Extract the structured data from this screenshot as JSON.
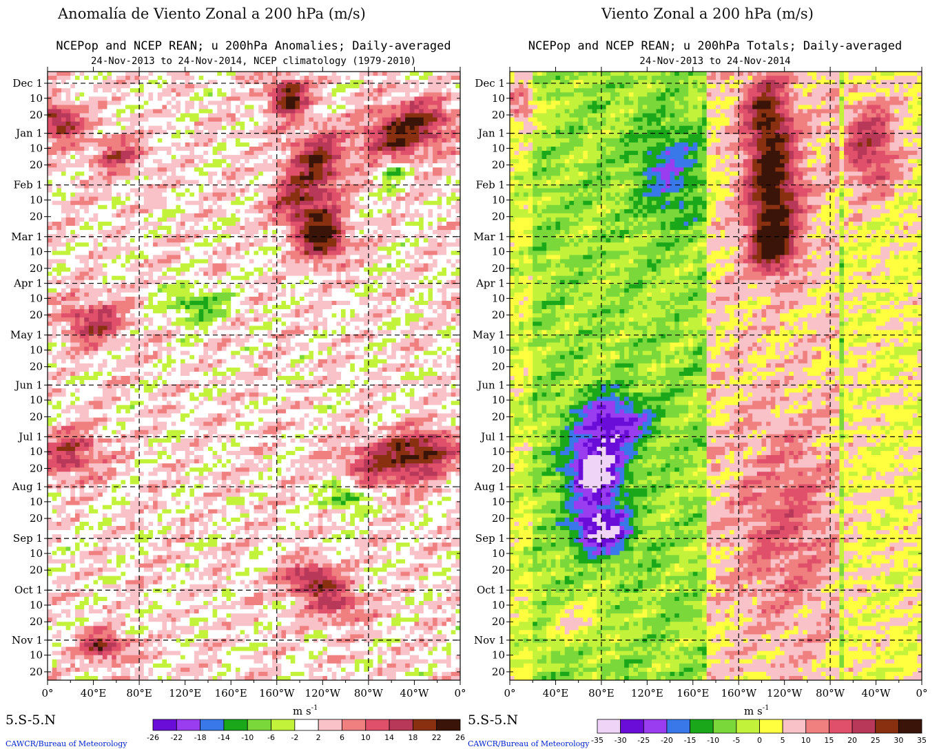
{
  "page_titles": {
    "left": "Anomalía de Viento Zonal a 200 hPa (m/s)",
    "right": "Viento Zonal  a 200 hPa (m/s)"
  },
  "region_label": "5.S-5.N",
  "credit": "CAWCR/Bureau of Meteorology",
  "units": "m s",
  "units_exp": "-1",
  "chart_data": [
    {
      "type": "heatmap",
      "title": "NCEPop and NCEP REAN; u 200hPa Anomalies; Daily-averaged",
      "subtitle": "24-Nov-2013 to 24-Nov-2014, NCEP climatology (1979-2010)",
      "x_ticks": [
        "0°",
        "40°E",
        "80°E",
        "120°E",
        "160°E",
        "160°W",
        "120°W",
        "80°W",
        "40°W",
        "0°"
      ],
      "x_range_deg_east": [
        0,
        360
      ],
      "y_ticks": [
        "Dec 1",
        "10",
        "20",
        "Jan 1",
        "10",
        "20",
        "Feb 1",
        "10",
        "20",
        "Mar 1",
        "10",
        "20",
        "Apr 1",
        "10",
        "20",
        "May 1",
        "10",
        "20",
        "Jun 1",
        "10",
        "20",
        "Jul 1",
        "10",
        "20",
        "Aug 1",
        "10",
        "20",
        "Sep 1",
        "10",
        "20",
        "Oct 1",
        "10",
        "20",
        "Nov 1",
        "10",
        "20"
      ],
      "y_range": [
        "24-Nov-2013",
        "24-Nov-2014"
      ],
      "colorbar_levels": [
        "-26",
        "-22",
        "-18",
        "-14",
        "-10",
        "-6",
        "-2",
        "2",
        "6",
        "10",
        "14",
        "18",
        "22",
        "26"
      ],
      "colorbar_colors": [
        "#6a0dd8",
        "#9a3cf0",
        "#3878e8",
        "#1aa81a",
        "#7ad83a",
        "#c2f23a",
        "#ffffff",
        "#f8c2c8",
        "#f08080",
        "#e0506a",
        "#b8385a",
        "#883010",
        "#3a1408"
      ],
      "features": [
        {
          "lon_range": [
            155,
            240
          ],
          "dates": "Dec–Mar",
          "anomaly_sign": "positive",
          "peak_ms": 26
        },
        {
          "lon_range": [
            270,
            360
          ],
          "dates": "Dec–Jan",
          "anomaly_sign": "positive",
          "peak_ms": 22
        },
        {
          "lon_range": [
            0,
            120
          ],
          "dates": "Nov",
          "anomaly_sign": "positive",
          "peak_ms": 22
        }
      ]
    },
    {
      "type": "heatmap",
      "title": "NCEPop and NCEP REAN; u 200hPa Totals; Daily-averaged",
      "subtitle": "24-Nov-2013 to 24-Nov-2014",
      "x_ticks": [
        "0°",
        "40°E",
        "80°E",
        "120°E",
        "160°E",
        "160°W",
        "120°W",
        "80°W",
        "40°W",
        "0°"
      ],
      "x_range_deg_east": [
        0,
        360
      ],
      "y_ticks": [
        "Dec 1",
        "10",
        "20",
        "Jan 1",
        "10",
        "20",
        "Feb 1",
        "10",
        "20",
        "Mar 1",
        "10",
        "20",
        "Apr 1",
        "10",
        "20",
        "May 1",
        "10",
        "20",
        "Jun 1",
        "10",
        "20",
        "Jul 1",
        "10",
        "20",
        "Aug 1",
        "10",
        "20",
        "Sep 1",
        "10",
        "20",
        "Oct 1",
        "10",
        "20",
        "Nov 1",
        "10",
        "20"
      ],
      "y_range": [
        "24-Nov-2013",
        "24-Nov-2014"
      ],
      "colorbar_levels": [
        "-35",
        "-30",
        "-25",
        "-20",
        "-15",
        "-10",
        "-5",
        "0",
        "5",
        "10",
        "15",
        "20",
        "25",
        "30",
        "35"
      ],
      "colorbar_colors": [
        "#f0d4f8",
        "#6a0dd8",
        "#9a3cf0",
        "#3878e8",
        "#1aa81a",
        "#7ad83a",
        "#c2f23a",
        "#ffff40",
        "#f8c2c8",
        "#f08080",
        "#e0506a",
        "#b8385a",
        "#883010",
        "#3a1408"
      ],
      "features": [
        {
          "lon_range": [
            175,
            275
          ],
          "dates": "Dec–Mar",
          "wind": "westerly",
          "peak_ms": 35
        },
        {
          "lon_range": [
            30,
            120
          ],
          "dates": "Jun–Sep",
          "wind": "easterly",
          "peak_ms": -35
        },
        {
          "lon_range": [
            290,
            340
          ],
          "dates": "Dec–Feb",
          "wind": "westerly",
          "peak_ms": 30
        }
      ]
    }
  ]
}
